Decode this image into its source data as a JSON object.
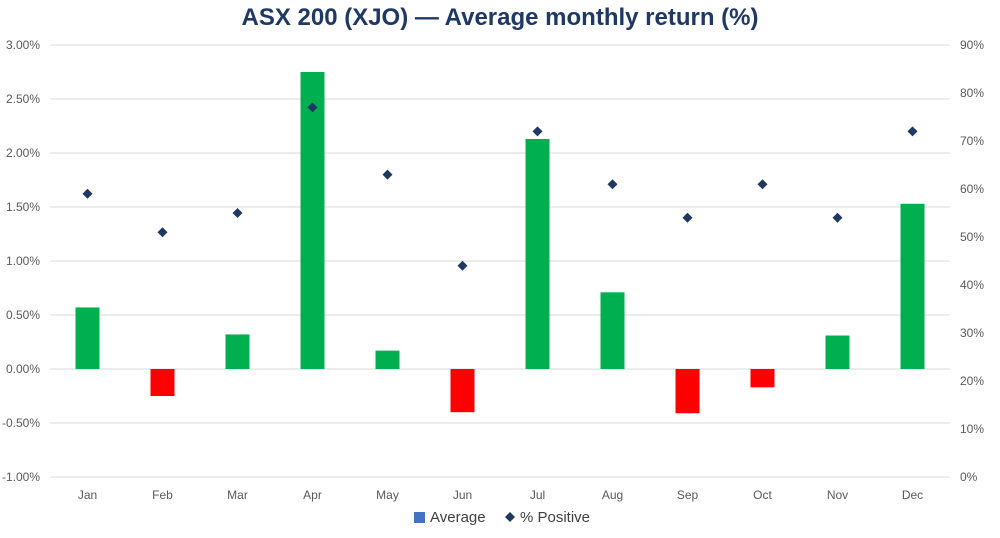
{
  "chart_data": {
    "type": "bar",
    "title": "ASX 200 (XJO) — Average monthly return (%)",
    "categories": [
      "Jan",
      "Feb",
      "Mar",
      "Apr",
      "May",
      "Jun",
      "Jul",
      "Aug",
      "Sep",
      "Oct",
      "Nov",
      "Dec"
    ],
    "series": [
      {
        "name": "Average",
        "type": "bar",
        "axis": "left",
        "values": [
          0.57,
          -0.25,
          0.32,
          2.75,
          0.17,
          -0.4,
          2.13,
          0.71,
          -0.41,
          -0.17,
          0.31,
          1.53
        ]
      },
      {
        "name": "% Positive",
        "type": "scatter",
        "axis": "right",
        "marker": "diamond",
        "values": [
          59,
          51,
          55,
          77,
          63,
          44,
          72,
          61,
          54,
          61,
          54,
          72
        ]
      }
    ],
    "y_left": {
      "min": -1.0,
      "max": 3.0,
      "step": 0.5,
      "tick_labels": [
        "-1.00%",
        "-0.50%",
        "0.00%",
        "0.50%",
        "1.00%",
        "1.50%",
        "2.00%",
        "2.50%",
        "3.00%"
      ]
    },
    "y_right": {
      "min": 0,
      "max": 90,
      "step": 10,
      "tick_labels": [
        "0%",
        "10%",
        "20%",
        "30%",
        "40%",
        "50%",
        "60%",
        "70%",
        "80%",
        "90%"
      ]
    },
    "grid": true,
    "legend_position": "bottom",
    "colors": {
      "positive_bar": "#00b050",
      "negative_bar": "#ff0000",
      "marker": "#1f3864",
      "legend_average": "#4472c4",
      "title": "#1f3864",
      "grid": "#d9d9d9"
    }
  }
}
